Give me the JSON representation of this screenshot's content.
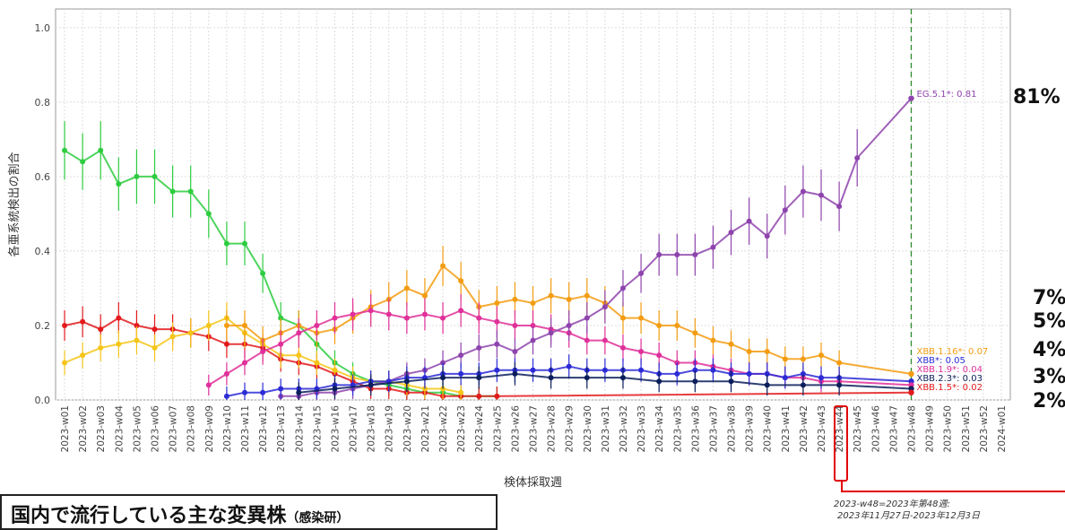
{
  "chart_data": {
    "type": "line",
    "xlabel": "検体採取週",
    "ylabel": "各亜系統検出の割合",
    "ylim": [
      0,
      1.05
    ],
    "yticks": [
      "0.0",
      "0.2",
      "0.4",
      "0.6",
      "0.8",
      "1.0"
    ],
    "categories": [
      "2023-w01",
      "2023-w02",
      "2023-w03",
      "2023-w04",
      "2023-w05",
      "2023-w06",
      "2023-w07",
      "2023-w08",
      "2023-w09",
      "2023-w10",
      "2023-w11",
      "2023-w12",
      "2023-w13",
      "2023-w14",
      "2023-w15",
      "2023-w16",
      "2023-w17",
      "2023-w18",
      "2023-w19",
      "2023-w20",
      "2023-w21",
      "2023-w22",
      "2023-w23",
      "2023-w24",
      "2023-w25",
      "2023-w26",
      "2023-w27",
      "2023-w28",
      "2023-w29",
      "2023-w30",
      "2023-w31",
      "2023-w32",
      "2023-w33",
      "2023-w34",
      "2023-w35",
      "2023-w36",
      "2023-w37",
      "2023-w38",
      "2023-w39",
      "2023-w40",
      "2023-w41",
      "2023-w42",
      "2023-w43",
      "2023-w44",
      "2023-w45",
      "2023-w46",
      "2023-w47",
      "2023-w48",
      "2023-w49",
      "2023-w50",
      "2023-w51",
      "2023-w52",
      "2024-w01"
    ],
    "dashed_line_at": "2023-w48",
    "grid": true,
    "colors": {
      "green": "#2ecc40",
      "red": "#e31a1c",
      "yellow": "#f5c518",
      "orange": "#f39c12",
      "purple": "#8e44ad",
      "magenta": "#e0309a",
      "blue": "#2b2bd6",
      "navy": "#0b1e5b",
      "dashed": "#2e8b2e"
    },
    "series": [
      {
        "color_key": "green",
        "points": [
          [
            1,
            0.67
          ],
          [
            2,
            0.64
          ],
          [
            3,
            0.67
          ],
          [
            4,
            0.58
          ],
          [
            5,
            0.6
          ],
          [
            6,
            0.6
          ],
          [
            7,
            0.56
          ],
          [
            8,
            0.56
          ],
          [
            9,
            0.5
          ],
          [
            10,
            0.42
          ],
          [
            11,
            0.42
          ],
          [
            12,
            0.34
          ],
          [
            13,
            0.22
          ],
          [
            14,
            0.2
          ],
          [
            15,
            0.15
          ],
          [
            16,
            0.1
          ],
          [
            17,
            0.07
          ],
          [
            18,
            0.05
          ],
          [
            19,
            0.04
          ],
          [
            20,
            0.03
          ],
          [
            21,
            0.02
          ],
          [
            22,
            0.02
          ],
          [
            23,
            0.01
          ],
          [
            24,
            0.01
          ],
          [
            25,
            0.01
          ]
        ]
      },
      {
        "color_key": "red",
        "points": [
          [
            1,
            0.2
          ],
          [
            2,
            0.21
          ],
          [
            3,
            0.19
          ],
          [
            4,
            0.22
          ],
          [
            5,
            0.2
          ],
          [
            6,
            0.19
          ],
          [
            7,
            0.19
          ],
          [
            8,
            0.18
          ],
          [
            9,
            0.17
          ],
          [
            10,
            0.15
          ],
          [
            11,
            0.15
          ],
          [
            12,
            0.14
          ],
          [
            13,
            0.11
          ],
          [
            14,
            0.1
          ],
          [
            15,
            0.09
          ],
          [
            16,
            0.07
          ],
          [
            17,
            0.05
          ],
          [
            18,
            0.03
          ],
          [
            19,
            0.03
          ],
          [
            20,
            0.02
          ],
          [
            21,
            0.02
          ],
          [
            22,
            0.01
          ],
          [
            23,
            0.01
          ],
          [
            24,
            0.01
          ],
          [
            25,
            0.01
          ]
        ]
      },
      {
        "color_key": "yellow",
        "points": [
          [
            1,
            0.1
          ],
          [
            2,
            0.12
          ],
          [
            3,
            0.14
          ],
          [
            4,
            0.15
          ],
          [
            5,
            0.16
          ],
          [
            6,
            0.14
          ],
          [
            7,
            0.17
          ],
          [
            8,
            0.18
          ],
          [
            9,
            0.2
          ],
          [
            10,
            0.22
          ],
          [
            11,
            0.18
          ],
          [
            12,
            0.15
          ],
          [
            13,
            0.12
          ],
          [
            14,
            0.12
          ],
          [
            15,
            0.1
          ],
          [
            16,
            0.08
          ],
          [
            17,
            0.06
          ],
          [
            18,
            0.05
          ],
          [
            19,
            0.05
          ],
          [
            20,
            0.04
          ],
          [
            21,
            0.03
          ],
          [
            22,
            0.03
          ],
          [
            23,
            0.02
          ]
        ]
      },
      {
        "color_key": "orange",
        "points": [
          [
            10,
            0.2
          ],
          [
            11,
            0.2
          ],
          [
            12,
            0.16
          ],
          [
            13,
            0.18
          ],
          [
            14,
            0.2
          ],
          [
            15,
            0.18
          ],
          [
            16,
            0.19
          ],
          [
            17,
            0.22
          ],
          [
            18,
            0.25
          ],
          [
            19,
            0.27
          ],
          [
            20,
            0.3
          ],
          [
            21,
            0.28
          ],
          [
            22,
            0.36
          ],
          [
            23,
            0.32
          ],
          [
            24,
            0.25
          ],
          [
            25,
            0.26
          ],
          [
            26,
            0.27
          ],
          [
            27,
            0.26
          ],
          [
            28,
            0.28
          ],
          [
            29,
            0.27
          ],
          [
            30,
            0.28
          ],
          [
            31,
            0.26
          ],
          [
            32,
            0.22
          ],
          [
            33,
            0.22
          ],
          [
            34,
            0.2
          ],
          [
            35,
            0.2
          ],
          [
            36,
            0.18
          ],
          [
            37,
            0.16
          ],
          [
            38,
            0.15
          ],
          [
            39,
            0.13
          ],
          [
            40,
            0.13
          ],
          [
            41,
            0.11
          ],
          [
            42,
            0.11
          ],
          [
            43,
            0.12
          ],
          [
            44,
            0.1
          ]
        ]
      },
      {
        "color_key": "magenta",
        "points": [
          [
            9,
            0.04
          ],
          [
            10,
            0.07
          ],
          [
            11,
            0.1
          ],
          [
            12,
            0.13
          ],
          [
            13,
            0.15
          ],
          [
            14,
            0.18
          ],
          [
            15,
            0.2
          ],
          [
            16,
            0.22
          ],
          [
            17,
            0.23
          ],
          [
            18,
            0.24
          ],
          [
            19,
            0.23
          ],
          [
            20,
            0.22
          ],
          [
            21,
            0.23
          ],
          [
            22,
            0.22
          ],
          [
            23,
            0.24
          ],
          [
            24,
            0.22
          ],
          [
            25,
            0.21
          ],
          [
            26,
            0.2
          ],
          [
            27,
            0.2
          ],
          [
            28,
            0.19
          ],
          [
            29,
            0.18
          ],
          [
            30,
            0.16
          ],
          [
            31,
            0.16
          ],
          [
            32,
            0.14
          ],
          [
            33,
            0.13
          ],
          [
            34,
            0.12
          ],
          [
            35,
            0.1
          ],
          [
            36,
            0.1
          ],
          [
            37,
            0.09
          ],
          [
            38,
            0.08
          ],
          [
            39,
            0.07
          ],
          [
            40,
            0.07
          ],
          [
            41,
            0.06
          ],
          [
            42,
            0.06
          ],
          [
            43,
            0.05
          ],
          [
            44,
            0.05
          ]
        ]
      },
      {
        "color_key": "purple",
        "points": [
          [
            13,
            0.01
          ],
          [
            14,
            0.01
          ],
          [
            15,
            0.02
          ],
          [
            16,
            0.02
          ],
          [
            17,
            0.03
          ],
          [
            18,
            0.04
          ],
          [
            19,
            0.05
          ],
          [
            20,
            0.07
          ],
          [
            21,
            0.08
          ],
          [
            22,
            0.1
          ],
          [
            23,
            0.12
          ],
          [
            24,
            0.14
          ],
          [
            25,
            0.15
          ],
          [
            26,
            0.13
          ],
          [
            27,
            0.16
          ],
          [
            28,
            0.18
          ],
          [
            29,
            0.2
          ],
          [
            30,
            0.22
          ],
          [
            31,
            0.25
          ],
          [
            32,
            0.3
          ],
          [
            33,
            0.34
          ],
          [
            34,
            0.39
          ],
          [
            35,
            0.39
          ],
          [
            36,
            0.39
          ],
          [
            37,
            0.41
          ],
          [
            38,
            0.45
          ],
          [
            39,
            0.48
          ],
          [
            40,
            0.44
          ],
          [
            41,
            0.51
          ],
          [
            42,
            0.56
          ],
          [
            43,
            0.55
          ],
          [
            44,
            0.52
          ],
          [
            45,
            0.65
          ]
        ]
      },
      {
        "color_key": "blue",
        "points": [
          [
            10,
            0.01
          ],
          [
            11,
            0.02
          ],
          [
            12,
            0.02
          ],
          [
            13,
            0.03
          ],
          [
            14,
            0.03
          ],
          [
            15,
            0.03
          ],
          [
            16,
            0.04
          ],
          [
            17,
            0.04
          ],
          [
            18,
            0.05
          ],
          [
            19,
            0.05
          ],
          [
            20,
            0.06
          ],
          [
            21,
            0.06
          ],
          [
            22,
            0.07
          ],
          [
            23,
            0.07
          ],
          [
            24,
            0.07
          ],
          [
            25,
            0.08
          ],
          [
            26,
            0.08
          ],
          [
            27,
            0.08
          ],
          [
            28,
            0.08
          ],
          [
            29,
            0.09
          ],
          [
            30,
            0.08
          ],
          [
            31,
            0.08
          ],
          [
            32,
            0.08
          ],
          [
            33,
            0.08
          ],
          [
            34,
            0.07
          ],
          [
            35,
            0.07
          ],
          [
            36,
            0.08
          ],
          [
            37,
            0.08
          ],
          [
            38,
            0.07
          ],
          [
            39,
            0.07
          ],
          [
            40,
            0.07
          ],
          [
            41,
            0.06
          ],
          [
            42,
            0.07
          ],
          [
            43,
            0.06
          ],
          [
            44,
            0.06
          ]
        ]
      },
      {
        "color_key": "navy",
        "points": [
          [
            14,
            0.02
          ],
          [
            16,
            0.03
          ],
          [
            18,
            0.04
          ],
          [
            20,
            0.05
          ],
          [
            22,
            0.06
          ],
          [
            24,
            0.06
          ],
          [
            26,
            0.07
          ],
          [
            28,
            0.06
          ],
          [
            30,
            0.06
          ],
          [
            32,
            0.06
          ],
          [
            34,
            0.05
          ],
          [
            36,
            0.05
          ],
          [
            38,
            0.05
          ],
          [
            40,
            0.04
          ],
          [
            42,
            0.04
          ],
          [
            44,
            0.04
          ]
        ]
      }
    ],
    "end_labels": [
      {
        "text": "EG.5.1*: 0.81",
        "color_key": "purple",
        "value": 0.81
      },
      {
        "text": "XBB.1.16*: 0.07",
        "color_key": "orange",
        "value": 0.07
      },
      {
        "text": "XBB*: 0.05",
        "color_key": "blue",
        "value": 0.05
      },
      {
        "text": "XBB.1.9*: 0.04",
        "color_key": "magenta",
        "value": 0.04
      },
      {
        "text": "XBB.2.3*: 0.03",
        "color_key": "navy",
        "value": 0.03
      },
      {
        "text": "XBB.1.5*: 0.02",
        "color_key": "red",
        "value": 0.02
      }
    ]
  },
  "annotations": {
    "pct_81": "81%",
    "pct_7": "7%",
    "pct_5": "5%",
    "pct_4": "4%",
    "pct_3": "3%",
    "pct_2": "2%",
    "box_title": "国内で流行している主な変異株",
    "box_source": "（感染研）",
    "footnote_line1": "2023-w48=2023年第48週:",
    "footnote_line2": "2023年11月27日-2023年12月3日"
  }
}
